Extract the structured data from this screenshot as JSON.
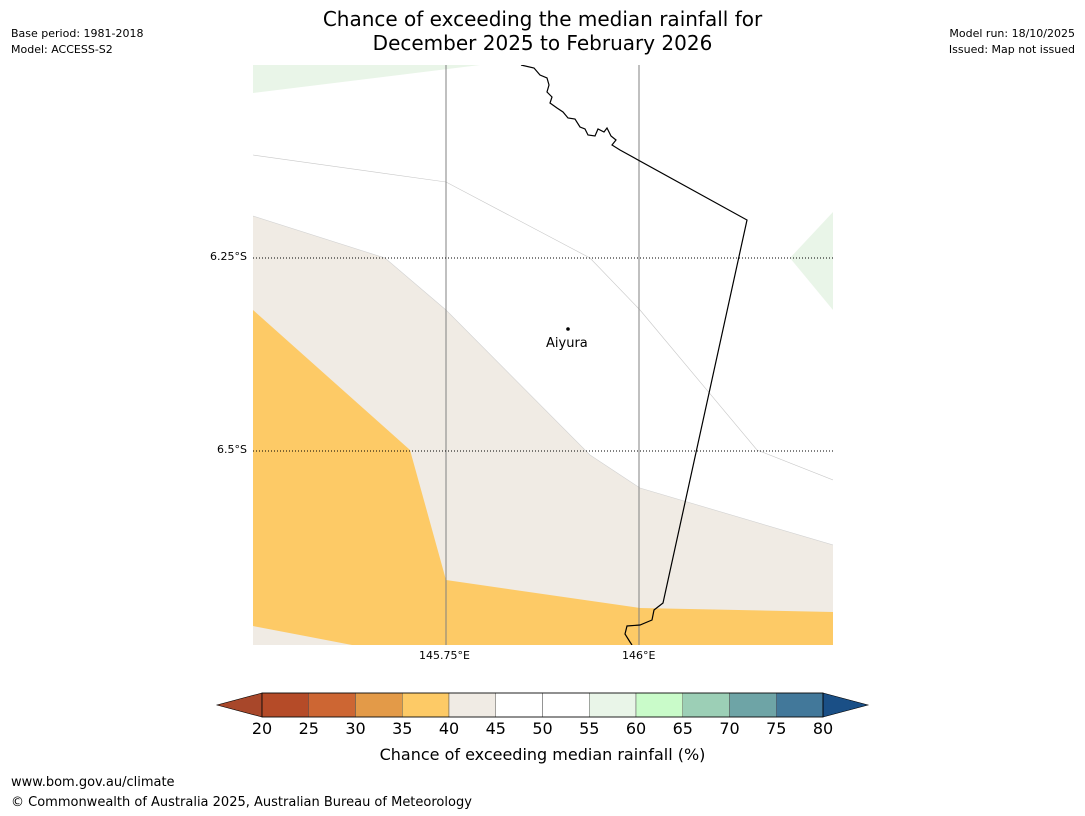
{
  "header": {
    "base_period": "Base period: 1981-2018",
    "model": "Model: ACCESS-S2",
    "title_line1": "Chance of exceeding the median rainfall for",
    "title_line2": "December 2025 to February 2026",
    "model_run": "Model run: 18/10/2025",
    "issued": "Issued: Map not issued"
  },
  "map": {
    "lat_labels": [
      "6.25°S",
      "6.5°S"
    ],
    "lon_labels": [
      "145.75°E",
      "146°E"
    ],
    "place": "Aiyura",
    "fill_colors": {
      "35-40": "#fdca66",
      "40-45": "#f0ebe4",
      "45-55": "#ffffff",
      "55-60": "#e9f5e8"
    }
  },
  "colorbar": {
    "ticks": [
      "20",
      "25",
      "30",
      "35",
      "40",
      "45",
      "50",
      "55",
      "60",
      "65",
      "70",
      "75",
      "80"
    ],
    "colors": [
      "#a8472a",
      "#b54b28",
      "#cd6633",
      "#e39a48",
      "#fdca66",
      "#f0ebe4",
      "#ffffff",
      "#ffffff",
      "#e9f5e8",
      "#c9fbc9",
      "#9ccfb6",
      "#6ea4a6",
      "#42789a",
      "#1a4f86"
    ],
    "label": "Chance of exceeding median rainfall (%)"
  },
  "footer": {
    "url": "www.bom.gov.au/climate",
    "copyright": "© Commonwealth of Australia 2025, Australian Bureau of Meteorology"
  }
}
